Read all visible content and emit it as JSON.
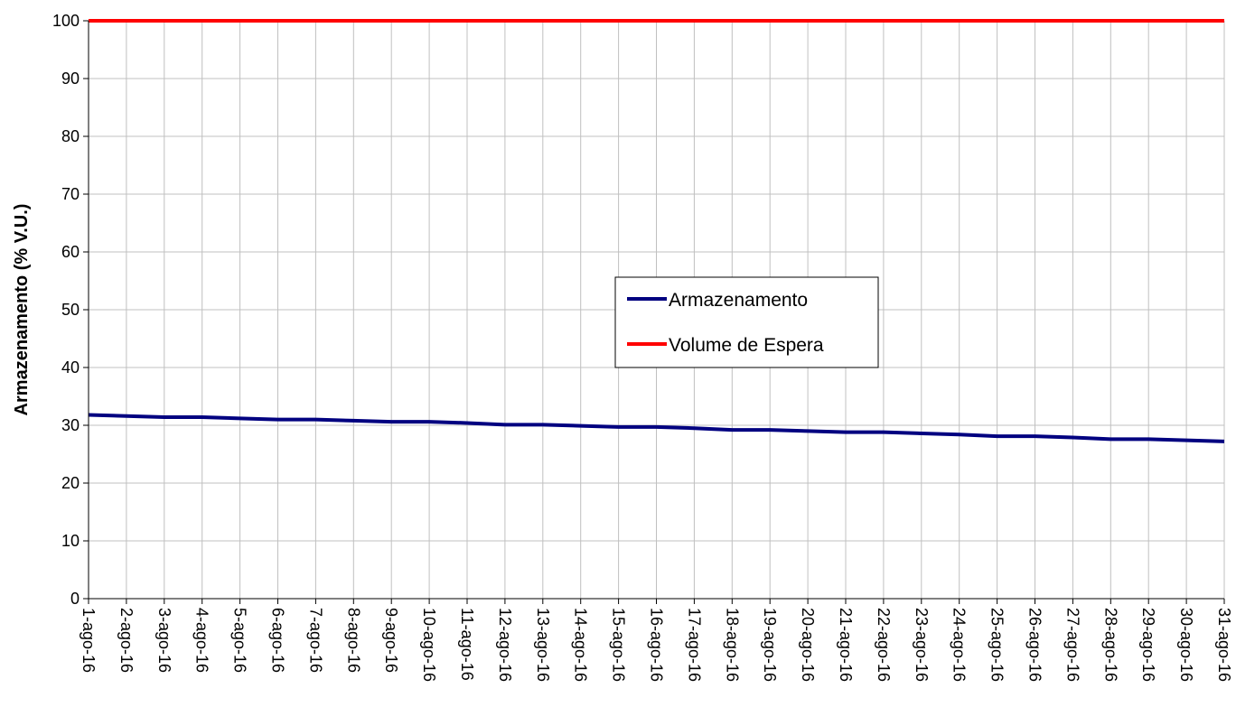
{
  "chart_data": {
    "type": "line",
    "title": "",
    "xlabel": "",
    "ylabel": "Armazenamento (% V.U.)",
    "ylim": [
      0,
      100
    ],
    "y_ticks": [
      "0",
      "10",
      "20",
      "30",
      "40",
      "50",
      "60",
      "70",
      "80",
      "90",
      "100"
    ],
    "categories": [
      "1-ago-16",
      "2-ago-16",
      "3-ago-16",
      "4-ago-16",
      "5-ago-16",
      "6-ago-16",
      "7-ago-16",
      "8-ago-16",
      "9-ago-16",
      "10-ago-16",
      "11-ago-16",
      "12-ago-16",
      "13-ago-16",
      "14-ago-16",
      "15-ago-16",
      "16-ago-16",
      "17-ago-16",
      "18-ago-16",
      "19-ago-16",
      "20-ago-16",
      "21-ago-16",
      "22-ago-16",
      "23-ago-16",
      "24-ago-16",
      "25-ago-16",
      "26-ago-16",
      "27-ago-16",
      "28-ago-16",
      "29-ago-16",
      "30-ago-16",
      "31-ago-16"
    ],
    "series": [
      {
        "name": "Armazenamento",
        "color": "#000080",
        "values": [
          31.8,
          31.6,
          31.4,
          31.4,
          31.2,
          31.0,
          31.0,
          30.8,
          30.6,
          30.6,
          30.4,
          30.1,
          30.1,
          29.9,
          29.7,
          29.7,
          29.5,
          29.2,
          29.2,
          29.0,
          28.8,
          28.8,
          28.6,
          28.4,
          28.1,
          28.1,
          27.9,
          27.6,
          27.6,
          27.4,
          27.2
        ]
      },
      {
        "name": "Volume de Espera",
        "color": "#ff0000",
        "values": [
          100,
          100,
          100,
          100,
          100,
          100,
          100,
          100,
          100,
          100,
          100,
          100,
          100,
          100,
          100,
          100,
          100,
          100,
          100,
          100,
          100,
          100,
          100,
          100,
          100,
          100,
          100,
          100,
          100,
          100,
          100
        ]
      }
    ],
    "grid": true,
    "legend_position": "center-right"
  }
}
